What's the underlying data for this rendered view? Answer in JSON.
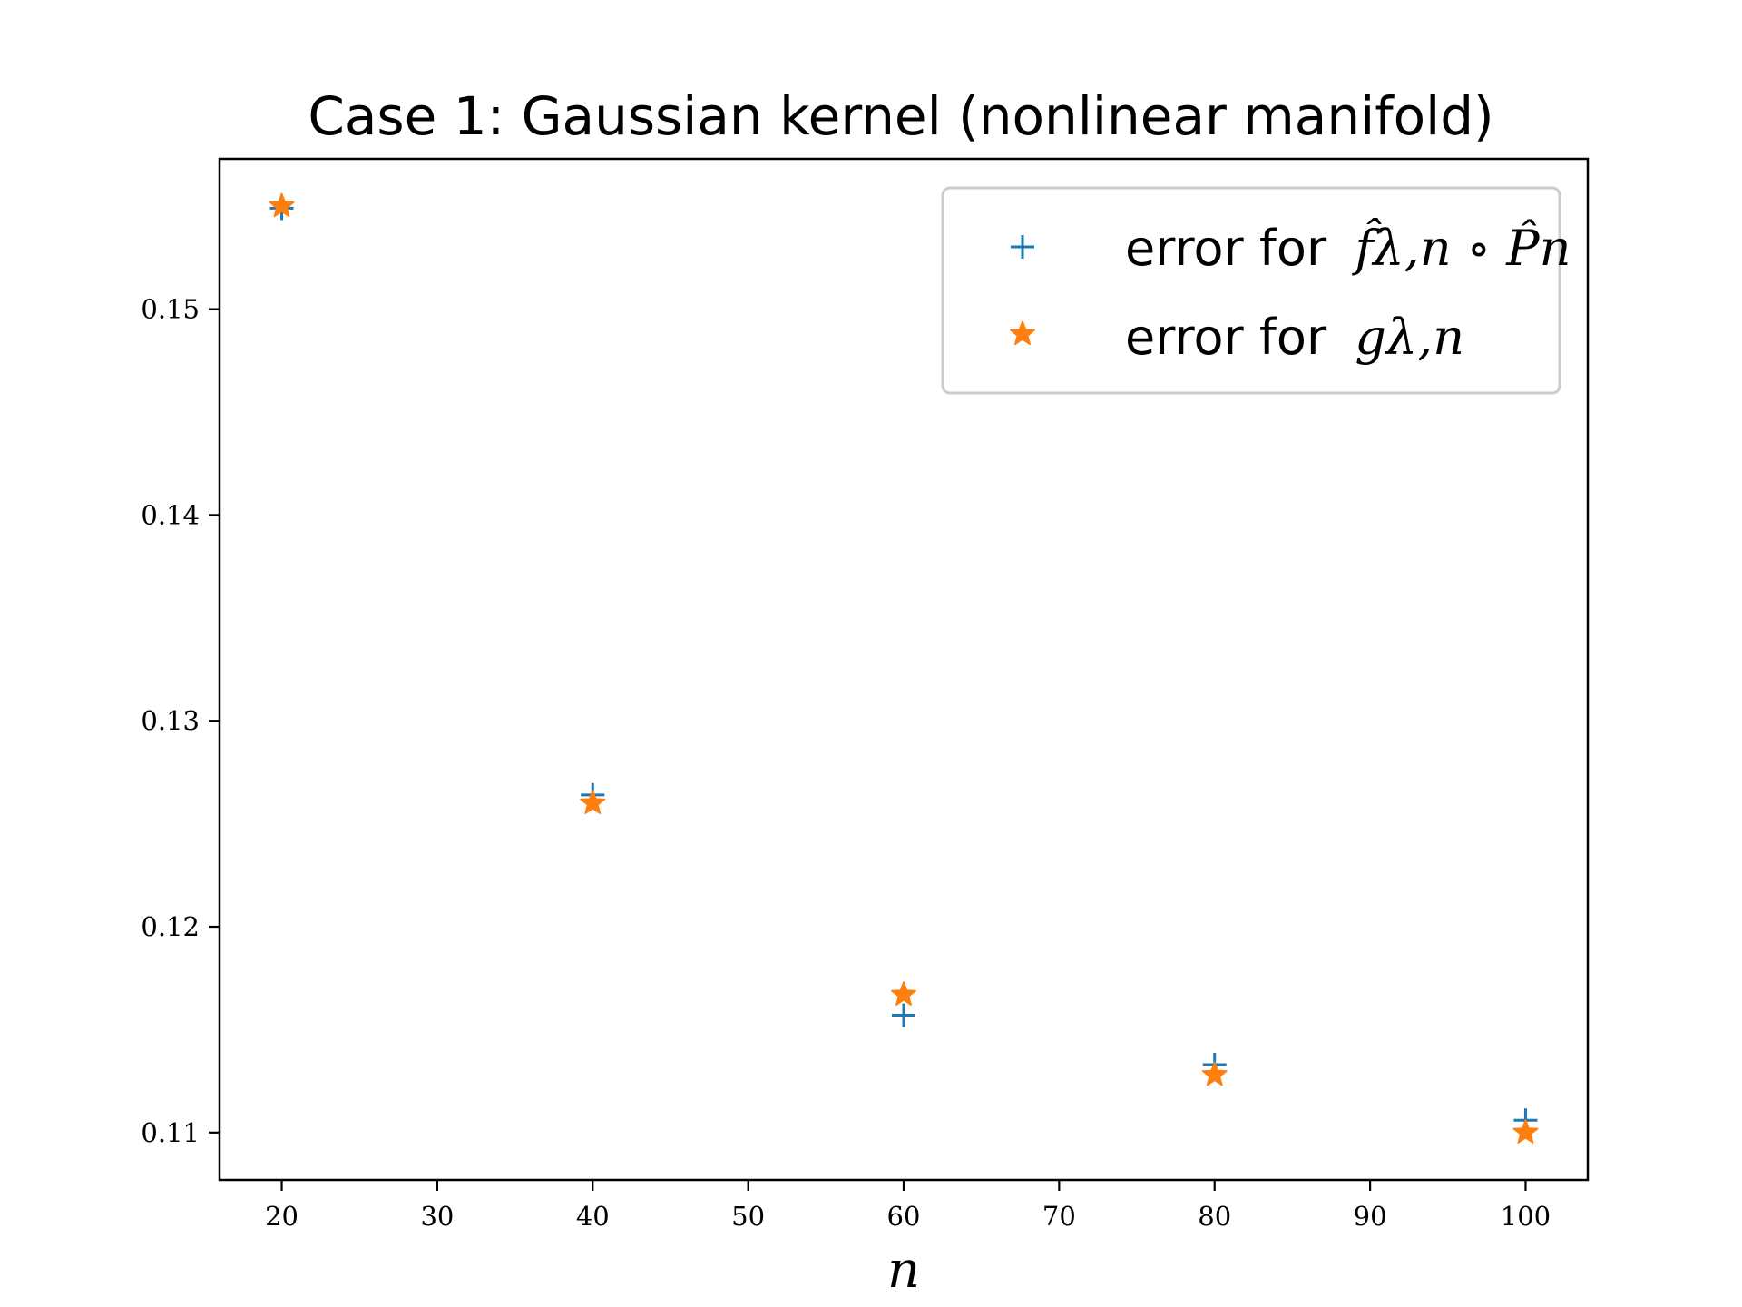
{
  "chart_data": {
    "type": "scatter",
    "title": "Case 1: Gaussian kernel (nonlinear manifold)",
    "xlabel": "n",
    "ylabel": "",
    "xlim": [
      16,
      104
    ],
    "ylim": [
      0.1077,
      0.1573
    ],
    "xticks": [
      20,
      30,
      40,
      50,
      60,
      70,
      80,
      90,
      100
    ],
    "xtick_labels": [
      "20",
      "30",
      "40",
      "50",
      "60",
      "70",
      "80",
      "90",
      "100"
    ],
    "yticks": [
      0.11,
      0.12,
      0.13,
      0.14,
      0.15
    ],
    "ytick_labels": [
      "0.11",
      "0.12",
      "0.13",
      "0.14",
      "0.15"
    ],
    "grid": false,
    "legend_position": "upper-right",
    "series": [
      {
        "name": "error for f̂λ,n ∘ P̂n",
        "label_plain": "error for",
        "label_math": "f̂λ,n ∘ P̂n",
        "marker": "plus",
        "color": "#1f77b4",
        "x": [
          20,
          40,
          60,
          80,
          100
        ],
        "y": [
          0.1549,
          0.1264,
          0.1157,
          0.1133,
          0.1106
        ]
      },
      {
        "name": "error for gλ,n",
        "label_plain": "error for",
        "label_math": "gλ,n",
        "marker": "star",
        "color": "#ff7f0e",
        "x": [
          20,
          40,
          60,
          80,
          100
        ],
        "y": [
          0.155,
          0.126,
          0.1167,
          0.1128,
          0.11
        ]
      }
    ]
  }
}
